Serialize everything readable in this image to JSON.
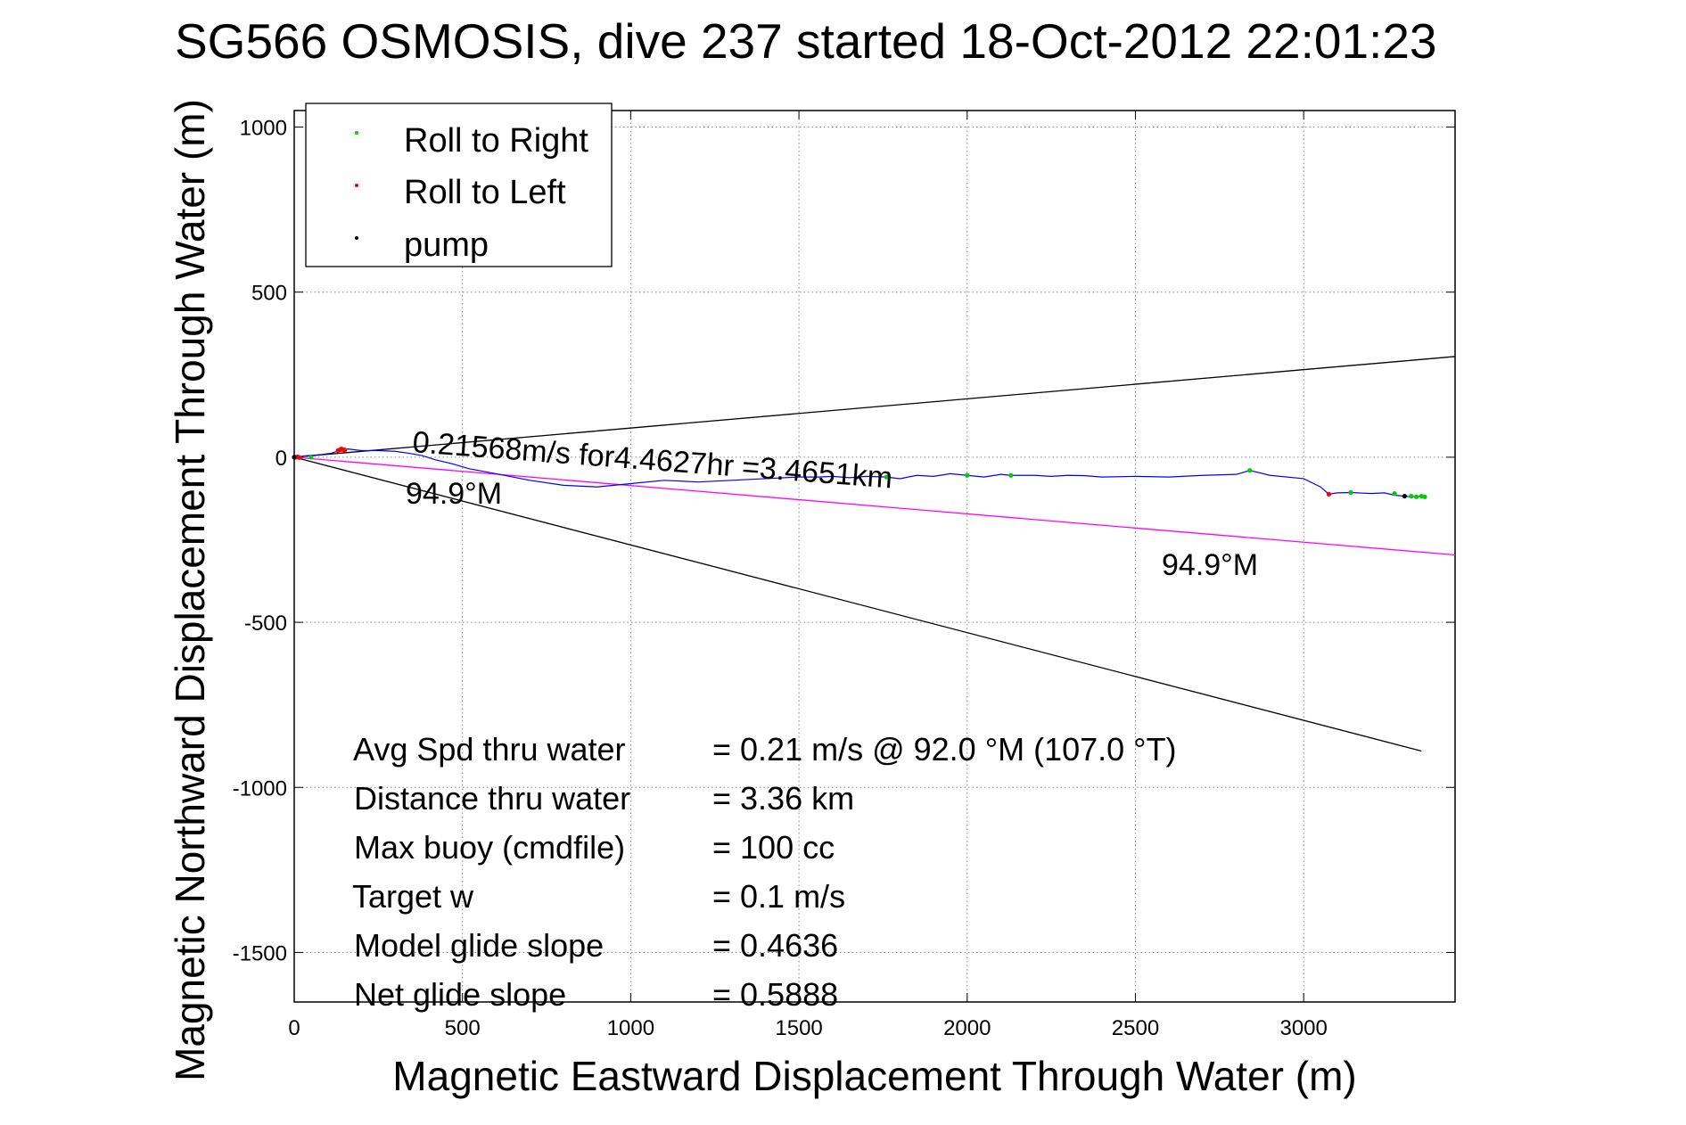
{
  "chart_data": {
    "type": "line",
    "title": "SG566 OSMOSIS, dive 237 started 18-Oct-2012 22:01:23",
    "xlabel": "Magnetic Eastward Displacement Through Water (m)",
    "ylabel": "Magnetic Northward Displacement Through Water (m)",
    "xlim": [
      0,
      3450
    ],
    "ylim": [
      -1650,
      1050
    ],
    "xticks": [
      0,
      500,
      1000,
      1500,
      2000,
      2500,
      3000
    ],
    "yticks": [
      1000,
      500,
      0,
      -500,
      -1000,
      -1500
    ],
    "grid": true,
    "legend": {
      "position": "top-left",
      "entries": [
        {
          "label": "Roll to Right",
          "color": "#00cc00"
        },
        {
          "label": "Roll to Left",
          "color": "#ff0000"
        },
        {
          "label": "pump",
          "color": "#000000"
        }
      ]
    },
    "track": {
      "color": "#0000ff",
      "x": [
        0,
        40,
        80,
        110,
        135,
        160,
        200,
        250,
        300,
        340,
        380,
        420,
        470,
        520,
        600,
        700,
        800,
        900,
        1000,
        1100,
        1200,
        1300,
        1400,
        1500,
        1560,
        1600,
        1650,
        1700,
        1760,
        1800,
        1850,
        1900,
        1950,
        2000,
        2050,
        2100,
        2130,
        2200,
        2250,
        2300,
        2350,
        2400,
        2500,
        2600,
        2700,
        2800,
        2840,
        2900,
        3000,
        3050,
        3075,
        3100,
        3140,
        3200,
        3240,
        3270,
        3300,
        3320,
        3340,
        3360
      ],
      "y": [
        0,
        5,
        8,
        12,
        20,
        25,
        20,
        20,
        18,
        12,
        5,
        -8,
        -20,
        -35,
        -50,
        -70,
        -85,
        -90,
        -80,
        -70,
        -75,
        -70,
        -65,
        -60,
        -60,
        -58,
        -62,
        -58,
        -60,
        -65,
        -55,
        -58,
        -50,
        -55,
        -60,
        -52,
        -55,
        -55,
        -58,
        -55,
        -56,
        -60,
        -58,
        -60,
        -55,
        -52,
        -40,
        -55,
        -65,
        -90,
        -112,
        -108,
        -107,
        -110,
        -108,
        -115,
        -118,
        -120,
        -118,
        -120
      ]
    },
    "roll_right_points": {
      "x": [
        50,
        1760,
        2000,
        2130,
        2840,
        3140,
        3270,
        3320,
        3335,
        3350,
        3360
      ],
      "y": [
        0,
        -60,
        -55,
        -55,
        -40,
        -107,
        -110,
        -118,
        -120,
        -118,
        -120
      ]
    },
    "roll_left_points": {
      "x": [
        5,
        10,
        15,
        130,
        135,
        140,
        145,
        150,
        3075
      ],
      "y": [
        0,
        1,
        -1,
        20,
        22,
        25,
        23,
        22,
        -112
      ]
    },
    "pump_points": {
      "x": [
        0,
        3300
      ],
      "y": [
        0,
        -118
      ]
    },
    "reference_lines": [
      {
        "name": "envelope-upper",
        "color": "#000000",
        "x": [
          0,
          3450
        ],
        "y": [
          0,
          305
        ]
      },
      {
        "name": "envelope-lower",
        "color": "#000000",
        "x": [
          0,
          3350
        ],
        "y": [
          0,
          -890
        ]
      },
      {
        "name": "course-line",
        "color": "#ff00ff",
        "x": [
          0,
          3450
        ],
        "y": [
          0,
          -296
        ]
      }
    ],
    "annotations": {
      "speed_text": "0.21568m/s for4.4627hr =3.4651km",
      "heading_left": "94.9°M",
      "heading_right": "94.9°M"
    },
    "stats": [
      {
        "label": "Avg Spd thru water",
        "value": "=  0.21 m/s @  92.0 °M (107.0 °T)"
      },
      {
        "label": "Distance thru water",
        "value": "=  3.36 km"
      },
      {
        "label": "Max buoy (cmdfile)",
        "value": "= 100 cc"
      },
      {
        "label": "Target w",
        "value": "= 0.1 m/s"
      },
      {
        "label": "Model glide slope",
        "value": "= 0.4636"
      },
      {
        "label": "Net glide slope",
        "value": "= 0.5888"
      }
    ]
  }
}
